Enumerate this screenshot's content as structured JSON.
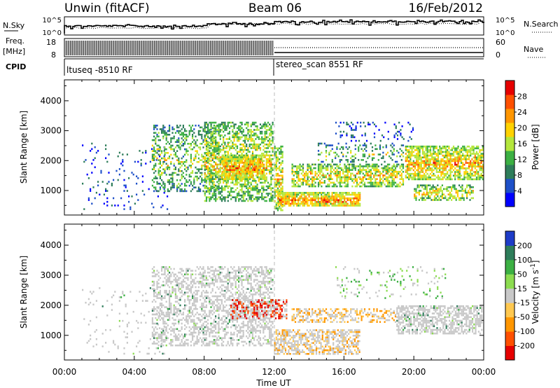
{
  "header": {
    "station": "Unwin (fitACF)",
    "beam": "Beam 06",
    "date": "16/Feb/2012"
  },
  "aux_panels": {
    "nsky_label": "N.Sky",
    "nsearch_label": "N.Search",
    "noise_ticks_left": [
      "10^5",
      "10^0"
    ],
    "noise_ticks_right": [
      "10^5",
      "10^0"
    ],
    "freq_label": "Freq.",
    "freq_unit": "[MHz]",
    "freq_ticks": [
      "18",
      "8"
    ],
    "nave_label": "Nave",
    "nave_ticks": [
      "60",
      "0"
    ],
    "cpid_label": "CPID",
    "cpid_segments": [
      "ltuseq -8510 RF",
      "stereo_scan 8551 RF"
    ]
  },
  "chart_data": [
    {
      "type": "heatmap",
      "name": "power-panel",
      "xlabel": "",
      "ylabel": "Slant Range [km]",
      "x_ticks": [
        "00:00",
        "04:00",
        "08:00",
        "12:00",
        "16:00",
        "20:00",
        "00:00"
      ],
      "y_ticks": [
        "1000",
        "2000",
        "3000",
        "4000"
      ],
      "xlim_hours": [
        0,
        24
      ],
      "ylim_km": [
        180,
        4700
      ],
      "colorbar": {
        "label": "Power [dB]",
        "ticks": [
          "28",
          "24",
          "20",
          "16",
          "12",
          "8",
          "4"
        ],
        "range": [
          0,
          30
        ],
        "colors": [
          "#0000ff",
          "#1e50c8",
          "#2e7d5a",
          "#3cb043",
          "#b4e63c",
          "#ffd200",
          "#ff9600",
          "#ff5000",
          "#e60000"
        ]
      },
      "scatter_regions": [
        {
          "t0": 1.0,
          "t1": 6.0,
          "r0": 300,
          "r1": 2600,
          "density": 0.06
        },
        {
          "t0": 5.0,
          "t1": 9.0,
          "r0": 900,
          "r1": 3200,
          "density": 0.35
        },
        {
          "t0": 8.0,
          "t1": 12.0,
          "r0": 600,
          "r1": 3300,
          "density": 0.55
        },
        {
          "t0": 9.0,
          "t1": 11.5,
          "r0": 1300,
          "r1": 2200,
          "density": 0.8
        },
        {
          "t0": 12.0,
          "t1": 12.6,
          "r0": 300,
          "r1": 2500,
          "density": 0.6
        },
        {
          "t0": 12.2,
          "t1": 17.0,
          "r0": 450,
          "r1": 950,
          "density": 0.85
        },
        {
          "t0": 13.0,
          "t1": 19.5,
          "r0": 1100,
          "r1": 1900,
          "density": 0.6
        },
        {
          "t0": 14.5,
          "t1": 19.5,
          "r0": 1900,
          "r1": 2600,
          "density": 0.25
        },
        {
          "t0": 15.5,
          "t1": 20.0,
          "r0": 2600,
          "r1": 3300,
          "density": 0.12
        },
        {
          "t0": 19.5,
          "t1": 24.0,
          "r0": 1300,
          "r1": 2500,
          "density": 0.75
        },
        {
          "t0": 20.0,
          "t1": 23.5,
          "r0": 600,
          "r1": 1200,
          "density": 0.55
        }
      ]
    },
    {
      "type": "heatmap",
      "name": "velocity-panel",
      "xlabel": "Time UT",
      "ylabel": "Slant Range [km]",
      "x_ticks": [
        "00:00",
        "04:00",
        "08:00",
        "12:00",
        "16:00",
        "20:00",
        "00:00"
      ],
      "y_ticks": [
        "1000",
        "2000",
        "3000",
        "4000"
      ],
      "xlim_hours": [
        0,
        24
      ],
      "ylim_km": [
        180,
        4700
      ],
      "colorbar": {
        "label": "Velocity [m s^-1]",
        "ticks": [
          "200",
          "100",
          "50",
          "15",
          "-15",
          "-50",
          "-100",
          "-200"
        ],
        "range": [
          -250,
          250
        ],
        "colors": [
          "#e60000",
          "#ff5000",
          "#ff9600",
          "#ffc850",
          "#c8c8c8",
          "#8cdc50",
          "#3cb043",
          "#2e7d5a",
          "#1e3cc8"
        ]
      },
      "scatter_regions": [
        {
          "t0": 1.0,
          "t1": 6.0,
          "r0": 300,
          "r1": 2600,
          "density": 0.05
        },
        {
          "t0": 5.0,
          "t1": 12.0,
          "r0": 600,
          "r1": 3300,
          "density": 0.45
        },
        {
          "t0": 9.5,
          "t1": 12.8,
          "r0": 1500,
          "r1": 2200,
          "density": 0.6
        },
        {
          "t0": 12.0,
          "t1": 17.0,
          "r0": 300,
          "r1": 1200,
          "density": 0.6
        },
        {
          "t0": 13.0,
          "t1": 19.0,
          "r0": 1400,
          "r1": 1900,
          "density": 0.45
        },
        {
          "t0": 15.5,
          "t1": 22.0,
          "r0": 2200,
          "r1": 3300,
          "density": 0.1
        },
        {
          "t0": 19.0,
          "t1": 24.0,
          "r0": 1000,
          "r1": 2000,
          "density": 0.6
        }
      ]
    }
  ]
}
